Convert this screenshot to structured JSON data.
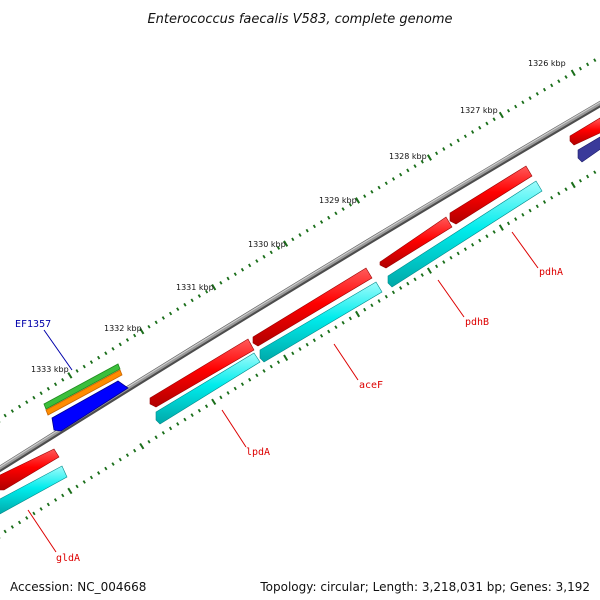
{
  "title": "Enterococcus faecalis V583, complete genome",
  "footer": {
    "accession": "Accession: NC_004668",
    "summary": "Topology: circular; Length: 3,218,031 bp; Genes: 3,192"
  },
  "ruler": {
    "labels": [
      "1326 kbp",
      "1327 kbp",
      "1328 kbp",
      "1329 kbp",
      "1330 kbp",
      "1331 kbp",
      "1332 kbp",
      "1333 kbp"
    ]
  },
  "genes": [
    {
      "name": "gldA",
      "color": "#ff0000"
    },
    {
      "name": "lpdA",
      "color": "#ff0000"
    },
    {
      "name": "aceF",
      "color": "#ff0000"
    },
    {
      "name": "pdhB",
      "color": "#ff0000"
    },
    {
      "name": "pdhA",
      "color": "#ff0000"
    },
    {
      "name": "EF1357",
      "color": "#0000aa"
    }
  ],
  "colors": {
    "backbone": "#888888",
    "cds": "#ff0000",
    "gene_track": "#00e5e5",
    "ef1357": "#0000ff",
    "ef1357_top": "#3cbf3c",
    "ef1357_mid": "#ff8c00",
    "other_gene": "#3a3a9a",
    "tick": "#1a6e1a",
    "label_red": "#dd0000",
    "label_blue": "#0000aa"
  }
}
